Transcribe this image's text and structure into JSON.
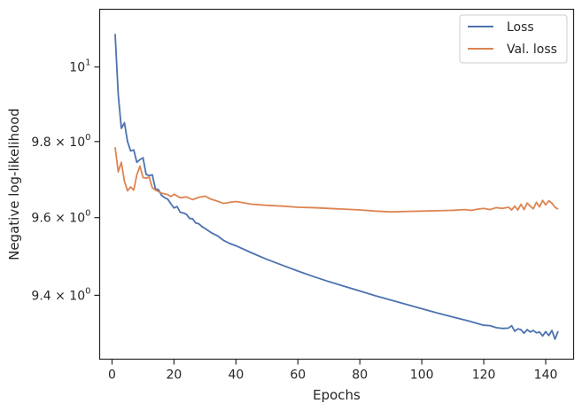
{
  "chart_data": {
    "type": "line",
    "xlabel": "Epochs",
    "ylabel": "Negative log-likelihood",
    "xlim": [
      -4,
      149
    ],
    "ylim": [
      9.2387,
      10.1576
    ],
    "y_scale": "log",
    "x_ticks": [
      0,
      20,
      40,
      60,
      80,
      100,
      120,
      140
    ],
    "x_tick_labels": [
      "0",
      "20",
      "40",
      "60",
      "80",
      "100",
      "120",
      "140"
    ],
    "y_ticks": [
      {
        "value": 10,
        "base": "10",
        "exp": "1",
        "prefix": ""
      },
      {
        "value": 9.8,
        "base": "10",
        "exp": "0",
        "prefix": "9.8 × "
      },
      {
        "value": 9.6,
        "base": "10",
        "exp": "0",
        "prefix": "9.6 × "
      },
      {
        "value": 9.4,
        "base": "10",
        "exp": "0",
        "prefix": "9.4 × "
      }
    ],
    "grid": false,
    "legend_position": "top-right",
    "series": [
      {
        "name": "Loss",
        "color": "#4c72b0",
        "x": [
          1,
          2,
          3,
          4,
          5,
          6,
          7,
          8,
          9,
          10,
          11,
          12,
          13,
          14,
          15,
          16,
          17,
          18,
          19,
          20,
          21,
          22,
          23,
          24,
          25,
          26,
          27,
          28,
          29,
          30,
          32,
          34,
          36,
          38,
          40,
          45,
          50,
          55,
          60,
          65,
          70,
          75,
          80,
          85,
          90,
          95,
          100,
          105,
          110,
          115,
          120,
          122,
          124,
          126,
          128,
          129,
          130,
          131,
          132,
          133,
          134,
          135,
          136,
          137,
          138,
          139,
          140,
          141,
          142,
          143,
          144
        ],
        "values": [
          10.09,
          9.925,
          9.835,
          9.85,
          9.8,
          9.775,
          9.778,
          9.745,
          9.752,
          9.757,
          9.713,
          9.71,
          9.712,
          9.675,
          9.673,
          9.658,
          9.652,
          9.648,
          9.636,
          9.625,
          9.629,
          9.614,
          9.612,
          9.609,
          9.598,
          9.597,
          9.586,
          9.584,
          9.577,
          9.572,
          9.561,
          9.553,
          9.541,
          9.533,
          9.527,
          9.509,
          9.492,
          9.477,
          9.462,
          9.448,
          9.435,
          9.423,
          9.411,
          9.399,
          9.388,
          9.377,
          9.366,
          9.355,
          9.345,
          9.335,
          9.324,
          9.323,
          9.318,
          9.316,
          9.317,
          9.323,
          9.309,
          9.315,
          9.313,
          9.304,
          9.313,
          9.307,
          9.311,
          9.305,
          9.307,
          9.297,
          9.308,
          9.298,
          9.311,
          9.289,
          9.309
        ]
      },
      {
        "name": "Val. loss",
        "color": "#dd8452",
        "x": [
          1,
          2,
          3,
          4,
          5,
          6,
          7,
          8,
          9,
          10,
          11,
          12,
          13,
          14,
          15,
          16,
          17,
          18,
          19,
          20,
          22,
          24,
          26,
          28,
          30,
          32,
          34,
          36,
          38,
          40,
          45,
          50,
          55,
          60,
          65,
          70,
          75,
          80,
          85,
          90,
          95,
          100,
          105,
          110,
          112,
          114,
          116,
          118,
          120,
          122,
          124,
          126,
          128,
          129,
          130,
          131,
          132,
          133,
          134,
          135,
          136,
          137,
          138,
          139,
          140,
          141,
          142,
          143,
          144
        ],
        "values": [
          9.785,
          9.72,
          9.745,
          9.695,
          9.67,
          9.68,
          9.672,
          9.712,
          9.735,
          9.705,
          9.703,
          9.706,
          9.678,
          9.672,
          9.668,
          9.664,
          9.662,
          9.66,
          9.655,
          9.661,
          9.652,
          9.654,
          9.647,
          9.653,
          9.656,
          9.648,
          9.643,
          9.637,
          9.64,
          9.642,
          9.635,
          9.632,
          9.63,
          9.627,
          9.626,
          9.624,
          9.622,
          9.62,
          9.617,
          9.615,
          9.616,
          9.617,
          9.618,
          9.619,
          9.62,
          9.621,
          9.619,
          9.622,
          9.624,
          9.621,
          9.626,
          9.624,
          9.627,
          9.62,
          9.63,
          9.62,
          9.635,
          9.621,
          9.638,
          9.63,
          9.623,
          9.64,
          9.628,
          9.645,
          9.633,
          9.644,
          9.638,
          9.627,
          9.622
        ]
      }
    ]
  }
}
